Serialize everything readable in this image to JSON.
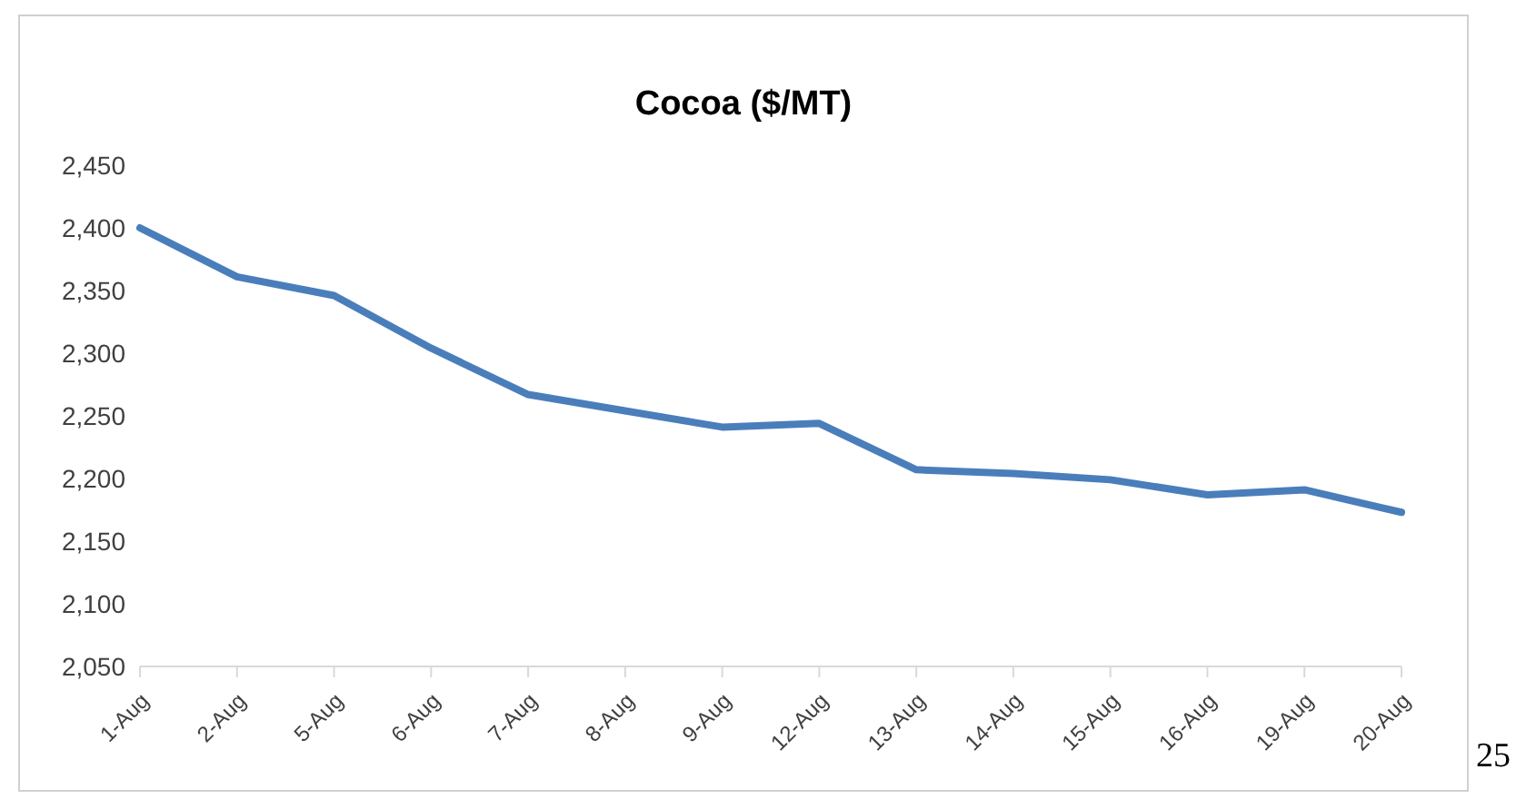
{
  "chart_data": {
    "type": "line",
    "title": "Cocoa ($/MT)",
    "categories": [
      "1-Aug",
      "2-Aug",
      "5-Aug",
      "6-Aug",
      "7-Aug",
      "8-Aug",
      "9-Aug",
      "12-Aug",
      "13-Aug",
      "14-Aug",
      "15-Aug",
      "16-Aug",
      "19-Aug",
      "20-Aug"
    ],
    "series": [
      {
        "color": "#4a7ebb",
        "values": [
          2400,
          2361,
          2346,
          2304,
          2267,
          2254,
          2241,
          2244,
          2207,
          2204,
          2199,
          2187,
          2191,
          2173
        ]
      }
    ],
    "ylim": [
      2050,
      2450
    ],
    "yticks": [
      {
        "value": 2050,
        "label": "2,050"
      },
      {
        "value": 2100,
        "label": "2,100"
      },
      {
        "value": 2150,
        "label": "2,150"
      },
      {
        "value": 2200,
        "label": "2,200"
      },
      {
        "value": 2250,
        "label": "2,250"
      },
      {
        "value": 2300,
        "label": "2,300"
      },
      {
        "value": 2350,
        "label": "2,350"
      },
      {
        "value": 2400,
        "label": "2,400"
      },
      {
        "value": 2450,
        "label": "2,450"
      }
    ],
    "grid": false,
    "legend": false,
    "marker": "none",
    "line_style": "solid",
    "annotations": [
      "25"
    ]
  }
}
